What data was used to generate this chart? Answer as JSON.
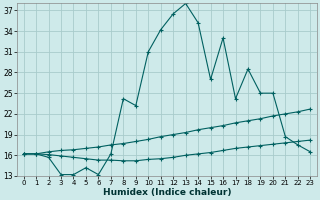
{
  "xlabel": "Humidex (Indice chaleur)",
  "bg_color": "#ceeaea",
  "grid_color": "#a8cccc",
  "line_color": "#006060",
  "xlim": [
    -0.5,
    23.5
  ],
  "ylim": [
    13,
    38
  ],
  "yticks": [
    13,
    16,
    19,
    22,
    25,
    28,
    31,
    34,
    37
  ],
  "xticks": [
    0,
    1,
    2,
    3,
    4,
    5,
    6,
    7,
    8,
    9,
    10,
    11,
    12,
    13,
    14,
    15,
    16,
    17,
    18,
    19,
    20,
    21,
    22,
    23
  ],
  "series1_x": [
    0,
    1,
    2,
    3,
    4,
    5,
    6,
    7,
    8,
    9,
    10,
    11,
    12,
    13,
    14,
    15,
    16,
    17,
    18,
    19,
    20,
    21,
    22,
    23
  ],
  "series1_y": [
    16.2,
    16.2,
    15.7,
    13.2,
    13.2,
    14.2,
    13.2,
    16.2,
    24.2,
    23.2,
    31.0,
    34.2,
    36.5,
    38.0,
    35.2,
    27.0,
    33.0,
    24.2,
    28.5,
    25.0,
    25.0,
    18.7,
    17.5,
    16.5
  ],
  "series2_x": [
    0,
    1,
    2,
    3,
    4,
    5,
    6,
    7,
    8,
    9,
    10,
    11,
    12,
    13,
    14,
    15,
    16,
    17,
    18,
    19,
    20,
    21,
    22,
    23
  ],
  "series2_y": [
    16.2,
    16.2,
    16.5,
    16.7,
    16.8,
    17.0,
    17.2,
    17.5,
    17.7,
    18.0,
    18.3,
    18.7,
    19.0,
    19.3,
    19.7,
    20.0,
    20.3,
    20.7,
    21.0,
    21.3,
    21.7,
    22.0,
    22.3,
    22.7
  ],
  "series3_x": [
    0,
    1,
    2,
    3,
    4,
    5,
    6,
    7,
    8,
    9,
    10,
    11,
    12,
    13,
    14,
    15,
    16,
    17,
    18,
    19,
    20,
    21,
    22,
    23
  ],
  "series3_y": [
    16.2,
    16.2,
    16.1,
    15.9,
    15.7,
    15.5,
    15.3,
    15.3,
    15.2,
    15.2,
    15.4,
    15.5,
    15.7,
    16.0,
    16.2,
    16.4,
    16.7,
    17.0,
    17.2,
    17.4,
    17.6,
    17.8,
    18.0,
    18.2
  ]
}
